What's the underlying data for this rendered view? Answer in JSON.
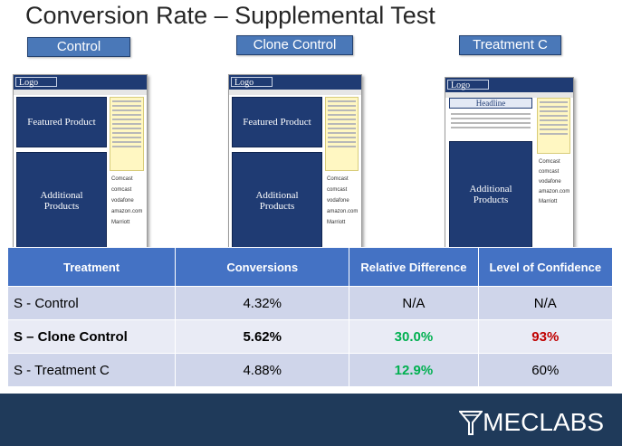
{
  "title": "Conversion Rate – Supplemental Test",
  "variants": [
    {
      "label": "Control"
    },
    {
      "label": "Clone Control"
    },
    {
      "label": "Treatment C"
    }
  ],
  "screens": {
    "logo_text": "Logo",
    "featured_text": "Featured Product",
    "additional_text": "Additional Products",
    "headline_text": "Headline",
    "brands": [
      "Comcast",
      "comcast",
      "vodafone",
      "amazon.com",
      "Marriott"
    ]
  },
  "table": {
    "headers": [
      "Treatment",
      "Conversions",
      "Relative Difference",
      "Level of Confidence"
    ],
    "rows": [
      {
        "treatment": "S - Control",
        "conversions": "4.32%",
        "relative": "N/A",
        "confidence": "N/A"
      },
      {
        "treatment": "S – Clone Control",
        "conversions": "5.62%",
        "relative": "30.0%",
        "confidence": "93%"
      },
      {
        "treatment": "S - Treatment C",
        "conversions": "4.88%",
        "relative": "12.9%",
        "confidence": "60%"
      }
    ]
  },
  "colors": {
    "positive": "#00b050",
    "negative": "#c00000",
    "header_bg": "#4472c4",
    "footer_bg": "#1f3a5a"
  },
  "footer": {
    "brand": "MECLABS"
  }
}
